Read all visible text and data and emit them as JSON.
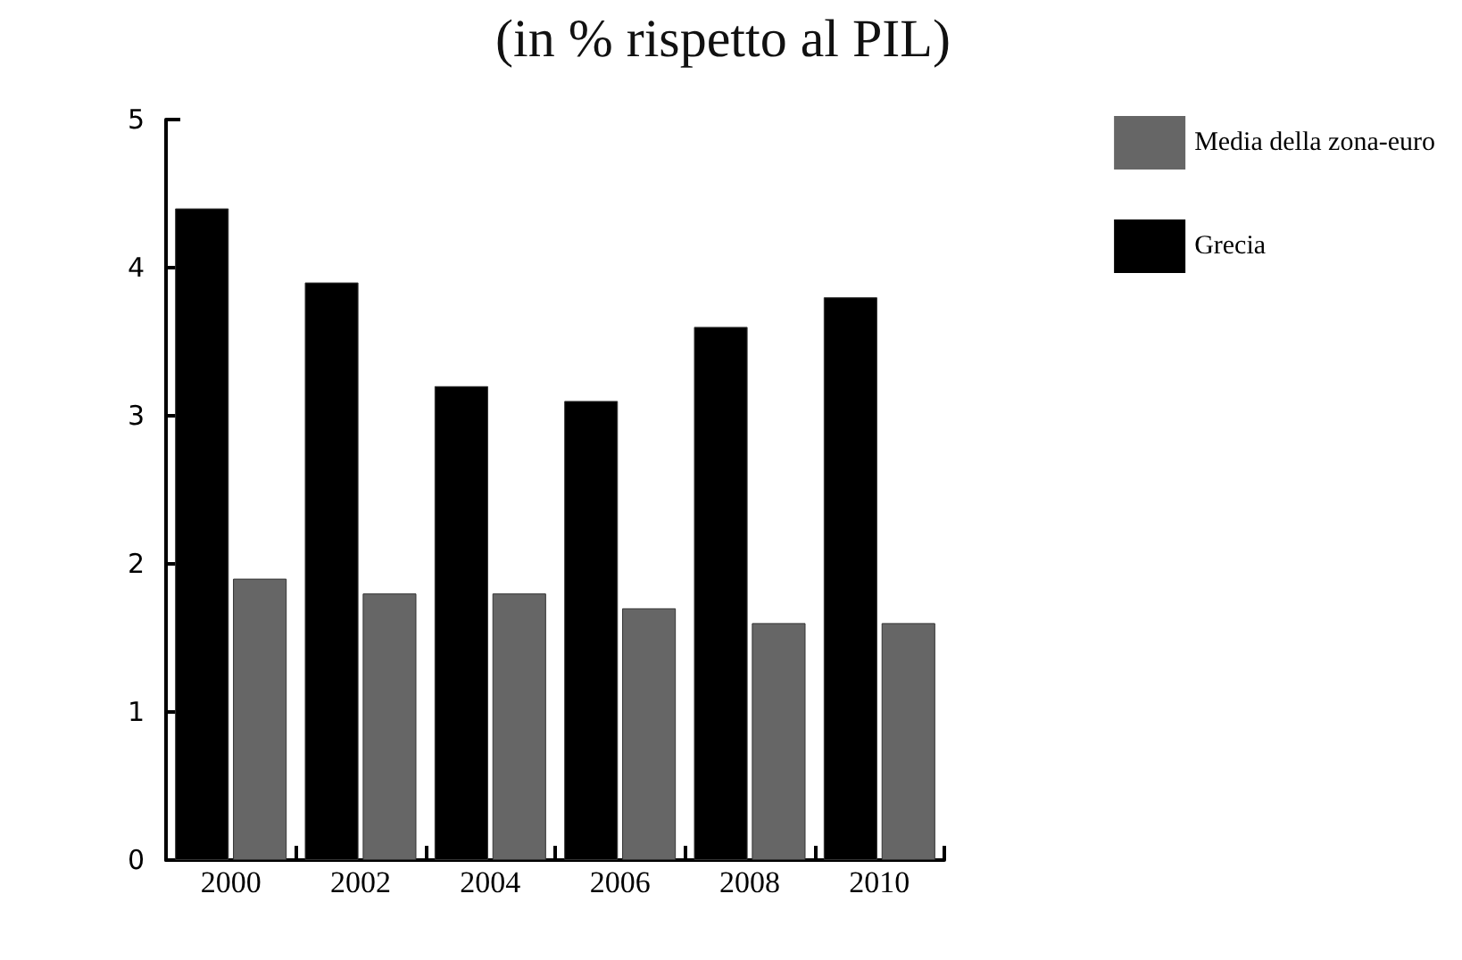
{
  "chart_data": {
    "type": "bar",
    "title": "(in % rispetto al PIL)",
    "categories": [
      "2000",
      "2002",
      "2004",
      "2006",
      "2008",
      "2010"
    ],
    "series": [
      {
        "name": "Grecia",
        "color": "#000000",
        "values": [
          4.4,
          3.9,
          3.2,
          3.1,
          3.6,
          3.8
        ]
      },
      {
        "name": "Media della zona-euro",
        "color": "#666666",
        "values": [
          1.9,
          1.8,
          1.8,
          1.7,
          1.6,
          1.6
        ]
      }
    ],
    "ylim": [
      0,
      5
    ],
    "yticks": [
      0,
      1,
      2,
      3,
      4,
      5
    ],
    "grid": false,
    "legend": "top right"
  }
}
